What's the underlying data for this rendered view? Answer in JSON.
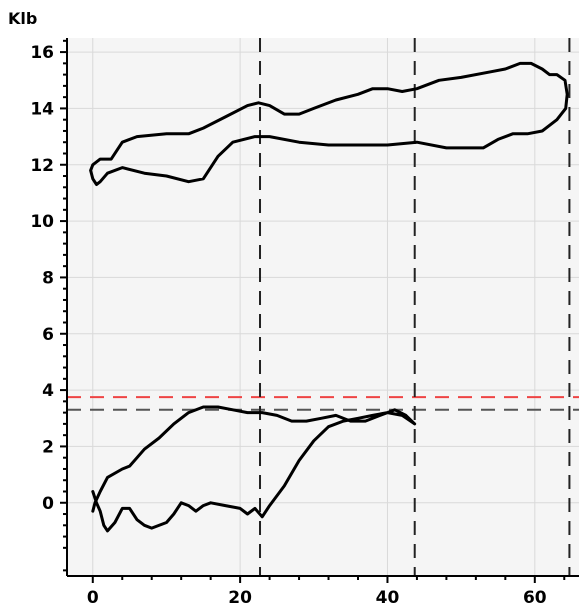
{
  "chart_data": {
    "type": "line",
    "ylabel": "Klb",
    "xlabel": "",
    "xlim": [
      -3.5,
      66
    ],
    "ylim": [
      -2.6,
      16.5
    ],
    "xticks": [
      0,
      20,
      40,
      60
    ],
    "yticks": [
      0,
      2,
      4,
      6,
      8,
      10,
      12,
      14,
      16
    ],
    "grid": true,
    "vertical_dashed_lines": [
      22.7,
      43.7,
      64.7
    ],
    "horizontal_dashed_lines": [
      {
        "y": 3.75,
        "color": "#ee4444"
      },
      {
        "y": 3.3,
        "color": "#555555"
      }
    ],
    "series": [
      {
        "points": [
          [
            0,
            12.0
          ],
          [
            1,
            12.2
          ],
          [
            2.5,
            12.2
          ],
          [
            4,
            12.8
          ],
          [
            6,
            13.0
          ],
          [
            10,
            13.1
          ],
          [
            13,
            13.1
          ],
          [
            15,
            13.3
          ],
          [
            18,
            13.7
          ],
          [
            21,
            14.1
          ],
          [
            22.5,
            14.2
          ],
          [
            24,
            14.1
          ],
          [
            26,
            13.8
          ],
          [
            28,
            13.8
          ],
          [
            30,
            14.0
          ],
          [
            33,
            14.3
          ],
          [
            36,
            14.5
          ],
          [
            38,
            14.7
          ],
          [
            40,
            14.7
          ],
          [
            42,
            14.6
          ],
          [
            44,
            14.7
          ],
          [
            47,
            15.0
          ],
          [
            50,
            15.1
          ],
          [
            54,
            15.3
          ],
          [
            56,
            15.4
          ],
          [
            58,
            15.6
          ],
          [
            59.5,
            15.6
          ],
          [
            61,
            15.4
          ],
          [
            62,
            15.2
          ],
          [
            63,
            15.2
          ],
          [
            64.1,
            15.0
          ],
          [
            64.4,
            14.5
          ],
          [
            64.2,
            14.0
          ],
          [
            63,
            13.6
          ],
          [
            61,
            13.2
          ],
          [
            59,
            13.1
          ],
          [
            57,
            13.1
          ],
          [
            55,
            12.9
          ],
          [
            53,
            12.6
          ],
          [
            50,
            12.6
          ],
          [
            48,
            12.6
          ],
          [
            44,
            12.8
          ],
          [
            40,
            12.7
          ],
          [
            36,
            12.7
          ],
          [
            32,
            12.7
          ],
          [
            28,
            12.8
          ],
          [
            24,
            13.0
          ],
          [
            22,
            13.0
          ],
          [
            19,
            12.8
          ],
          [
            17,
            12.3
          ],
          [
            15,
            11.5
          ],
          [
            13,
            11.4
          ],
          [
            10,
            11.6
          ],
          [
            7,
            11.7
          ],
          [
            4,
            11.9
          ],
          [
            2,
            11.7
          ],
          [
            1,
            11.4
          ],
          [
            0.5,
            11.3
          ],
          [
            0,
            11.5
          ],
          [
            -0.3,
            11.8
          ],
          [
            0,
            12.0
          ]
        ]
      },
      {
        "points": [
          [
            0,
            0.4
          ],
          [
            0.5,
            0.0
          ],
          [
            1,
            -0.3
          ],
          [
            1.5,
            -0.8
          ],
          [
            2,
            -1.0
          ],
          [
            3,
            -0.7
          ],
          [
            4,
            -0.2
          ],
          [
            5,
            -0.2
          ],
          [
            6,
            -0.6
          ],
          [
            7,
            -0.8
          ],
          [
            8,
            -0.9
          ],
          [
            10,
            -0.7
          ],
          [
            11,
            -0.4
          ],
          [
            12,
            0.0
          ],
          [
            13,
            -0.1
          ],
          [
            14,
            -0.3
          ],
          [
            15,
            -0.1
          ],
          [
            16,
            0.0
          ],
          [
            18,
            -0.1
          ],
          [
            20,
            -0.2
          ],
          [
            21,
            -0.4
          ],
          [
            22,
            -0.2
          ],
          [
            23,
            -0.5
          ],
          [
            24,
            -0.1
          ],
          [
            26,
            0.6
          ],
          [
            28,
            1.5
          ],
          [
            30,
            2.2
          ],
          [
            32,
            2.7
          ],
          [
            34,
            2.9
          ],
          [
            36,
            3.0
          ],
          [
            38,
            3.1
          ],
          [
            40,
            3.2
          ],
          [
            42,
            3.1
          ],
          [
            43.7,
            2.8
          ],
          [
            42.5,
            3.1
          ],
          [
            41,
            3.3
          ],
          [
            39,
            3.1
          ],
          [
            37,
            2.9
          ],
          [
            35,
            2.9
          ],
          [
            33,
            3.1
          ],
          [
            31,
            3.0
          ],
          [
            29,
            2.9
          ],
          [
            27,
            2.9
          ],
          [
            25,
            3.1
          ],
          [
            23,
            3.2
          ],
          [
            21,
            3.2
          ],
          [
            19,
            3.3
          ],
          [
            17,
            3.4
          ],
          [
            15,
            3.4
          ],
          [
            13,
            3.2
          ],
          [
            11,
            2.8
          ],
          [
            9,
            2.3
          ],
          [
            7,
            1.9
          ],
          [
            6,
            1.6
          ],
          [
            5,
            1.3
          ],
          [
            4,
            1.2
          ],
          [
            2,
            0.9
          ],
          [
            1,
            0.4
          ],
          [
            0.3,
            0.0
          ],
          [
            0,
            -0.3
          ]
        ]
      }
    ]
  }
}
